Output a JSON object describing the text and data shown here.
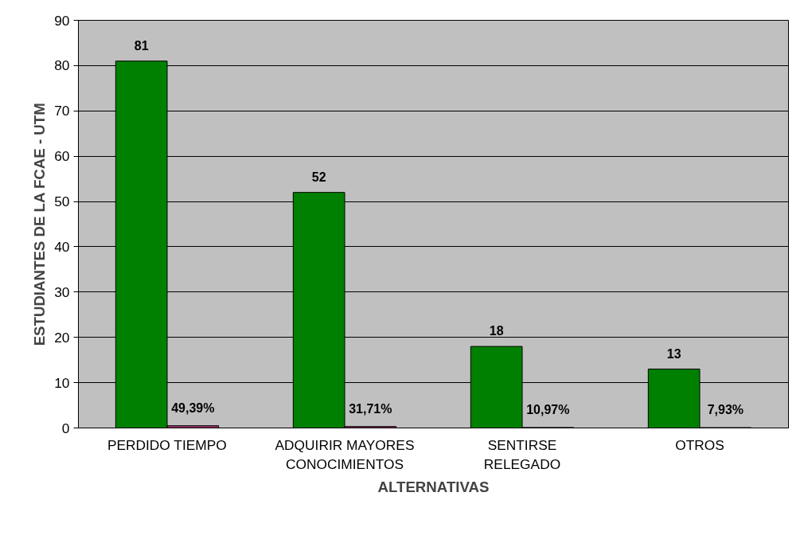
{
  "chart_data": {
    "type": "bar",
    "xlabel": "ALTERNATIVAS",
    "ylabel": "ESTUDIANTES DE LA FCAE - UTM",
    "categories": [
      "PERDIDO TIEMPO",
      "ADQUIRIR MAYORES\nCONOCIMIENTOS",
      "SENTIRSE\nRELEGADO",
      "OTROS"
    ],
    "series": [
      {
        "color": "#008000",
        "values": [
          81,
          52,
          18,
          13
        ],
        "value_labels": [
          "81",
          "52",
          "18",
          "13"
        ]
      },
      {
        "color": "#993366",
        "values": [
          0.4939,
          0.3171,
          0.1097,
          0.0793
        ],
        "value_labels": [
          "49,39%",
          "31,71%",
          "10,97%",
          "7,93%"
        ]
      }
    ],
    "ylim": [
      0,
      90
    ],
    "yticks": [
      0,
      10,
      20,
      30,
      40,
      50,
      60,
      70,
      80,
      90
    ],
    "grid": "y"
  }
}
